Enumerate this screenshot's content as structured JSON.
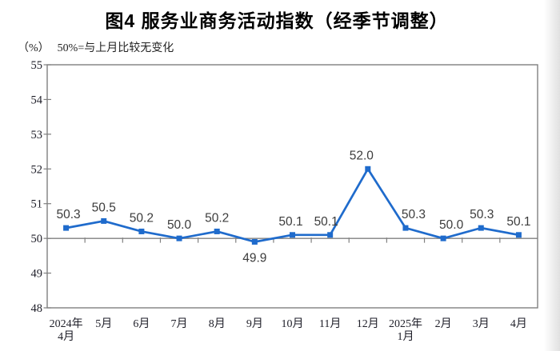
{
  "chart_data": {
    "type": "line",
    "title": "图4  服务业商务活动指数（经季节调整）",
    "unit": "（%）",
    "note": "50%=与上月比较无变化",
    "categories": [
      "2024年\n4月",
      "5月",
      "6月",
      "7月",
      "8月",
      "9月",
      "10月",
      "11月",
      "12月",
      "2025年\n1月",
      "2月",
      "3月",
      "4月"
    ],
    "series": [
      {
        "name": "服务业商务活动指数",
        "values": [
          50.3,
          50.5,
          50.2,
          50.0,
          50.2,
          49.9,
          50.1,
          50.1,
          52.0,
          50.3,
          50.0,
          50.3,
          50.1
        ]
      }
    ],
    "data_labels": [
      "50.3",
      "50.5",
      "50.2",
      "50.0",
      "50.2",
      "49.9",
      "50.1",
      "50.1",
      "52.0",
      "50.3",
      "50.0",
      "50.3",
      "50.1"
    ],
    "xlabel": "",
    "ylabel": "",
    "ylim": [
      48,
      55
    ],
    "yticks": [
      48,
      49,
      50,
      51,
      52,
      53,
      54,
      55
    ],
    "baseline_value": 50,
    "grid": "off",
    "legend": "none",
    "marker": "square",
    "colors": {
      "line": "#1F6BCC",
      "marker": "#1F6BCC",
      "axis": "#7F7F7F",
      "baseline": "#808080",
      "data_label": "#3C3C3C",
      "tick_label": "#1E1E28",
      "title": "#000000"
    },
    "label_layout": {
      "below_indices": [
        5
      ],
      "dx": [
        3,
        0,
        0,
        0,
        0,
        0,
        -2,
        -5,
        -8,
        10,
        10,
        1,
        0
      ]
    }
  }
}
